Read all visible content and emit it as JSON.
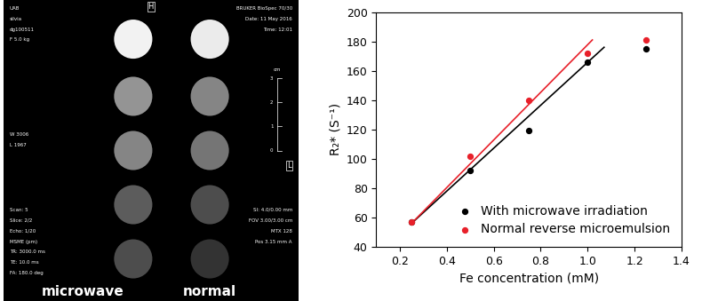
{
  "mri_image": {
    "top_left": [
      "UAB",
      "silvia",
      "dg100511",
      "F 5.0 kg"
    ],
    "top_center": "H",
    "top_right": [
      "BRUKER BioSpec 70/30",
      "Date: 11 May 2016",
      "Time: 12:01"
    ],
    "middle_left": [
      "W 3006",
      "L 1967"
    ],
    "scale": {
      "label": "cm",
      "ticks": [
        3,
        2,
        1,
        0
      ]
    },
    "right_marker": "L",
    "bottom_left": [
      "Scan: 5",
      "Slice: 2/2",
      "Echo: 1/20",
      "MSME (pm)",
      "TR: 3000.0 ms",
      "TE: 10.0 ms",
      "FA: 180.0 deg"
    ],
    "bottom_right": [
      "SI: 4.0/0.00 mm",
      "FOV 3.00/3.00 cm",
      "MTX 128",
      "Pos 3.15 mm A"
    ],
    "columns": [
      {
        "label": "microwave",
        "intensity": [
          0.95,
          0.58,
          0.52,
          0.36,
          0.3
        ]
      },
      {
        "label": "normal",
        "intensity": [
          0.92,
          0.52,
          0.46,
          0.3,
          0.2
        ]
      }
    ]
  },
  "chart_data": {
    "type": "scatter",
    "xlabel": "Fe concentration (mM)",
    "ylabel": "R₂* (S⁻¹)",
    "xlim": [
      0.1,
      1.4
    ],
    "xticks": [
      0.2,
      0.4,
      0.6,
      0.8,
      1.0,
      1.2,
      1.4
    ],
    "ylim": [
      40,
      200
    ],
    "yticks": [
      40,
      60,
      80,
      100,
      120,
      140,
      160,
      180,
      200
    ],
    "legend": "lower right",
    "series": [
      {
        "name": "With microwave irradiation",
        "color": "#000000",
        "marker": "o",
        "x": [
          0.25,
          0.5,
          0.75,
          1.0,
          1.25
        ],
        "values": [
          57,
          92,
          119,
          166,
          175
        ],
        "fit": {
          "x": [
            0.25,
            1.07
          ],
          "values": [
            56,
            176
          ]
        }
      },
      {
        "name": "Normal reverse microemulsion",
        "color": "#e8202a",
        "marker": "o",
        "x": [
          0.25,
          0.5,
          0.75,
          1.0,
          1.25
        ],
        "values": [
          57,
          102,
          140,
          172,
          181
        ],
        "fit": {
          "x": [
            0.25,
            1.02
          ],
          "values": [
            56,
            181
          ]
        }
      }
    ]
  }
}
